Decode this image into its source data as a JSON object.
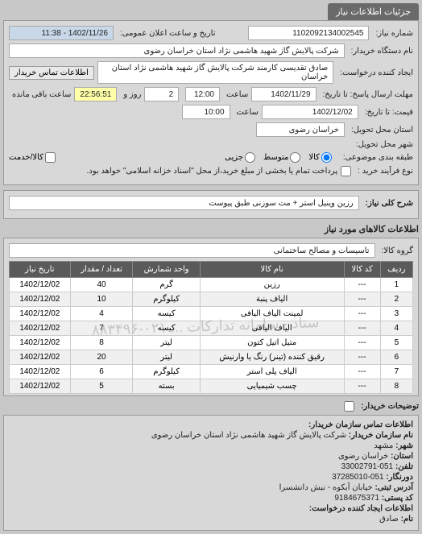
{
  "header": {
    "tab": "جزئیات اطلاعات نیاز"
  },
  "top": {
    "reqno_label": "شماره نیاز:",
    "reqno": "1102092134002545",
    "public_date_label": "تاریخ و ساعت اعلان عمومی:",
    "public_date": "1402/11/26 - 11:38",
    "buyer_org_label": "نام دستگاه خریدار:",
    "buyer_org": "شرکت پالایش گاز شهید هاشمی نژاد   استان خراسان رضوی",
    "creator_label": "ایجاد کننده درخواست:",
    "creator": "صادق تقدیسی کارمند شرکت پالایش گاز شهید هاشمی نژاد   استان خراسان",
    "contact_btn": "اطلاعات تماس خریدار",
    "deadline_label": "مهلت ارسال پاسخ: تا تاریخ:",
    "deadline_date": "1402/11/29",
    "time_label": "ساعت",
    "deadline_time": "12:00",
    "days": "2",
    "days_label": "روز و",
    "countdown": "22:56:51",
    "remain_label": "ساعت باقی مانده",
    "expire_label": "قیمت: تا تاریخ:",
    "expire_date": "1402/12/02",
    "expire_time": "10:00",
    "loc_label": "استان محل تحویل:",
    "loc": "خراسان رضوی",
    "city_label": "شهر محل تحویل:",
    "pkg_label": "طبقه بندی موضوعی:",
    "pkg_all": "کالا",
    "pkg_mid": "متوسط",
    "pkg_part": "جزیی",
    "pkg_svc": "کالا/خدمت",
    "pay_label": "نوع فرآیند خرید :",
    "pay_note": "پرداخت تمام یا بخشی از مبلغ خرید،از محل \"اسناد خزانه اسلامی\" خواهد بود."
  },
  "need": {
    "label": "شرح کلی نیاز:",
    "text": "رزین وینیل استر + مت سوزنی طبق پیوست"
  },
  "goods": {
    "title": "اطلاعات کالاهای مورد نیاز",
    "group_label": "گروه کالا:",
    "group": "تاسیسات و مصالح ساختمانی",
    "columns": [
      "ردیف",
      "کد کالا",
      "نام کالا",
      "واحد شمارش",
      "تعداد / مقدار",
      "تاریخ نیاز"
    ],
    "rows": [
      [
        "1",
        "---",
        "رزین",
        "گرم",
        "40",
        "1402/12/02"
      ],
      [
        "2",
        "---",
        "الیاف پنبة",
        "کیلوگرم",
        "10",
        "1402/12/02"
      ],
      [
        "3",
        "---",
        "لمینت الیاف الیافی",
        "کیسه",
        "4",
        "1402/12/02"
      ],
      [
        "4",
        "---",
        "الیاف الیافی",
        "کیسه",
        "7",
        "1402/12/02"
      ],
      [
        "5",
        "---",
        "متیل اتیل کتون",
        "لیتر",
        "8",
        "1402/12/02"
      ],
      [
        "6",
        "---",
        "رقیق کننده (تینر) رنگ یا وارنیش",
        "لیتر",
        "20",
        "1402/12/02"
      ],
      [
        "7",
        "---",
        "الیاف پلی استر",
        "کیلوگرم",
        "6",
        "1402/12/02"
      ],
      [
        "8",
        "---",
        "چسب شیمیایی",
        "بسته",
        "5",
        "1402/12/02"
      ]
    ],
    "watermark": "ستاد - سامانه تدارکات ... ۰۲۱-۸۸۳۴۹۶"
  },
  "explain": {
    "label": "توضیحات خریدار:"
  },
  "footer": {
    "title": "اطلاعات تماس سازمان خریدار:",
    "org_label": "نام سازمان خریدار:",
    "org": "شرکت پالایش گاز شهید هاشمی نژاد استان خراسان رضوی",
    "city_label": "شهر:",
    "city": "مشهد",
    "province_label": "استان:",
    "province": "خراسان رضوی",
    "tel_label": "تلفن:",
    "tel": "051-33002791",
    "fax_label": "دورنگار:",
    "fax": "051-37285010",
    "addr_label": "آدرس ثبتی:",
    "addr": "خیابان آبکوه - نبش دانشسرا",
    "post_label": "کد پستی:",
    "post": "9184675371",
    "creator2_label": "اطلاعات ایجاد کننده درخواست:",
    "name_label": "نام:",
    "name": "صادق"
  }
}
